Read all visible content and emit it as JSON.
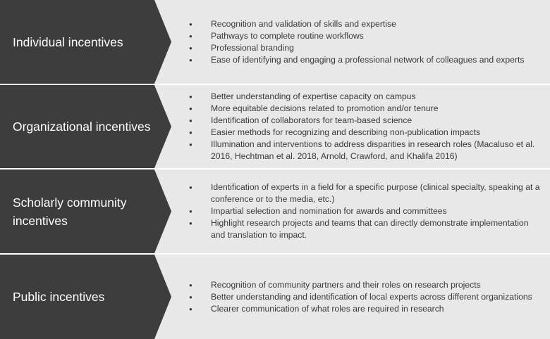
{
  "rows": [
    {
      "label": "Individual incentives",
      "items": [
        "Recognition and validation of skills and expertise",
        "Pathways to complete routine workflows",
        "Professional branding",
        "Ease of identifying and engaging a professional network of colleagues and experts"
      ]
    },
    {
      "label": "Organizational incentives",
      "items": [
        "Better understanding of expertise capacity on campus",
        "More equitable decisions related to promotion and/or tenure",
        "Identification of collaborators for team-based science",
        "Easier methods for recognizing and describing non-publication impacts",
        "Illumination and interventions to address disparities in research roles (Macaluso et al. 2016, Hechtman et al. 2018, Arnold, Crawford, and Khalifa 2016)"
      ]
    },
    {
      "label": "Scholarly community incentives",
      "items": [
        "Identification of experts in a field for a specific purpose (clinical specialty, speaking at a conference or to the media, etc.)",
        "Impartial selection and nomination for awards and committees",
        "Highlight research projects and teams that can directly demonstrate implementation and translation to impact."
      ]
    },
    {
      "label": "Public incentives",
      "items": [
        "Recognition of community partners and their roles on research projects",
        "Better understanding and identification of local experts across different organizations",
        "Clearer communication of what roles are required in research"
      ]
    }
  ]
}
